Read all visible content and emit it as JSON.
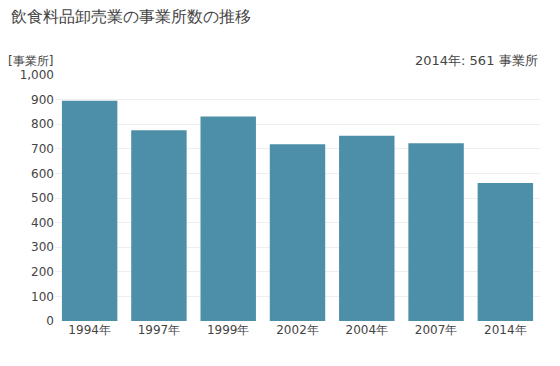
{
  "chart_data": {
    "type": "bar",
    "title": "飲食料品卸売業の事業所数の推移",
    "ylabel": "[事業所]",
    "annotation": "2014年: 561 事業所",
    "categories": [
      "1994年",
      "1997年",
      "1999年",
      "2002年",
      "2004年",
      "2007年",
      "2014年"
    ],
    "values": [
      895,
      775,
      831,
      718,
      753,
      723,
      561
    ],
    "color": "#4d8fa8",
    "ylim": [
      0,
      1000
    ],
    "yticks": [
      0,
      100,
      200,
      300,
      400,
      500,
      600,
      700,
      800,
      900,
      {
        "value": 1000,
        "label": "1,000"
      }
    ],
    "grid": true
  }
}
